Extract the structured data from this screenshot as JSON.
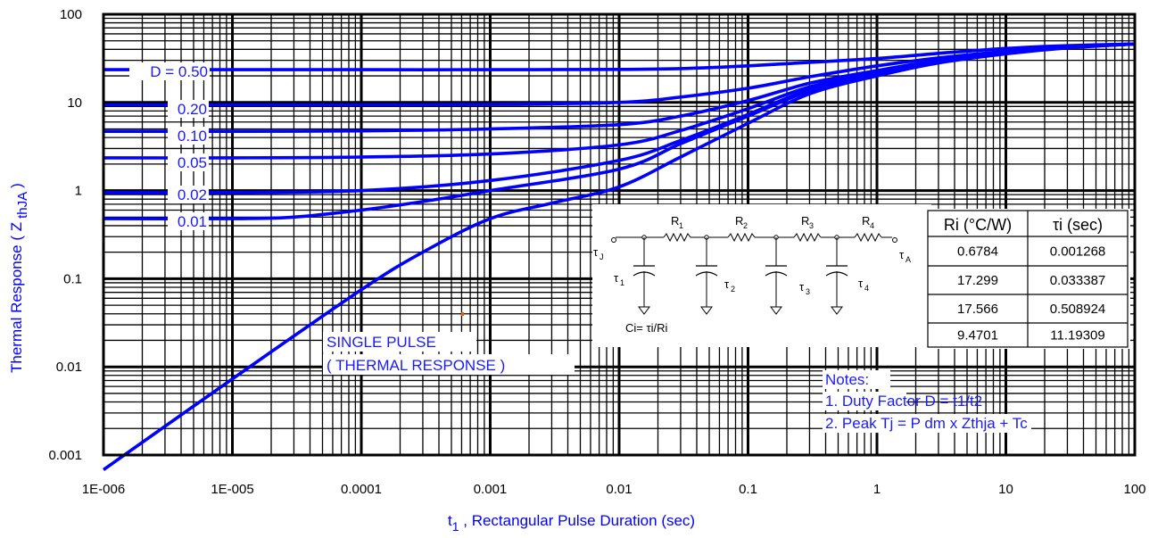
{
  "chart_data": {
    "type": "line",
    "xlabel": "t",
    "xlabel_sub": "1",
    "xlabel_rest": " , Rectangular Pulse Duration (sec)",
    "ylabel": "Thermal Response ( Z",
    "ylabel_sub": "thJA",
    "ylabel_end": ")",
    "x_scale": "log",
    "y_scale": "log",
    "xlim": [
      1e-06,
      100
    ],
    "ylim": [
      0.001,
      100
    ],
    "grid": true,
    "x_ticks": [
      "1E-006",
      "1E-005",
      "0.0001",
      "0.001",
      "0.01",
      "0.1",
      "1",
      "10",
      "100"
    ],
    "y_ticks": [
      "0.001",
      "0.01",
      "0.1",
      "1",
      "10",
      "100"
    ],
    "series": [
      {
        "name": "D = 0.50",
        "color": "#0000ff",
        "x": [
          1e-06,
          1e-05,
          0.0001,
          0.001,
          0.01,
          0.03,
          0.1,
          0.3,
          1,
          3,
          10,
          30,
          100
        ],
        "y": [
          23.5,
          23.5,
          23.5,
          23.5,
          23.7,
          24.2,
          26,
          28.5,
          31.5,
          36,
          41,
          44,
          46
        ]
      },
      {
        "name": "0.20",
        "color": "#0000ff",
        "x": [
          1e-06,
          1e-05,
          0.0001,
          0.001,
          0.01,
          0.03,
          0.1,
          0.3,
          1,
          3,
          10,
          30,
          100
        ],
        "y": [
          9.4,
          9.4,
          9.4,
          9.5,
          10,
          11.5,
          14.5,
          19.5,
          26,
          32,
          38,
          43,
          46
        ]
      },
      {
        "name": "0.10",
        "color": "#0000ff",
        "x": [
          1e-06,
          1e-05,
          0.0001,
          0.001,
          0.01,
          0.03,
          0.1,
          0.3,
          1,
          3,
          10,
          30,
          100
        ],
        "y": [
          4.7,
          4.7,
          4.75,
          5,
          5.6,
          7,
          10.5,
          16.5,
          23,
          30,
          37,
          42.5,
          46
        ]
      },
      {
        "name": "0.05",
        "color": "#0000ff",
        "x": [
          1e-06,
          1e-05,
          0.0001,
          0.001,
          0.01,
          0.03,
          0.1,
          0.3,
          1,
          3,
          10,
          30,
          100
        ],
        "y": [
          2.35,
          2.35,
          2.4,
          2.6,
          3.3,
          4.8,
          8.5,
          15,
          22,
          29.5,
          36.5,
          42,
          46
        ]
      },
      {
        "name": "0.02",
        "color": "#0000ff",
        "x": [
          1e-06,
          1e-05,
          0.0001,
          0.001,
          0.01,
          0.03,
          0.1,
          0.3,
          1,
          3,
          10,
          30,
          100
        ],
        "y": [
          0.95,
          0.95,
          1.0,
          1.3,
          2.2,
          3.7,
          7.3,
          14,
          21.5,
          29,
          36.5,
          42,
          46
        ]
      },
      {
        "name": "0.01",
        "color": "#0000ff",
        "x": [
          1e-06,
          1e-05,
          3e-05,
          0.0001,
          0.0003,
          0.001,
          0.01,
          0.03,
          0.1,
          0.3,
          1,
          3,
          10,
          30,
          100
        ],
        "y": [
          0.48,
          0.48,
          0.5,
          0.6,
          0.75,
          1.0,
          1.75,
          3.4,
          7,
          13.5,
          21,
          28.5,
          36,
          42,
          46
        ]
      },
      {
        "name": "SINGLE PULSE",
        "color": "#0000ff",
        "x": [
          1e-06,
          1e-05,
          0.0001,
          0.0003,
          0.001,
          0.003,
          0.01,
          0.03,
          0.1,
          0.3,
          1,
          3,
          10,
          30,
          100
        ],
        "y": [
          0.00068,
          0.0073,
          0.075,
          0.2,
          0.48,
          0.72,
          1.1,
          2.4,
          5.8,
          12.5,
          20,
          28,
          35.5,
          41.5,
          46
        ]
      }
    ],
    "series_labels": [
      "D = 0.50",
      "0.20",
      "0.10",
      "0.05",
      "0.02",
      "0.01"
    ],
    "single_pulse_label": [
      "SINGLE PULSE",
      "( THERMAL RESPONSE )"
    ],
    "notes": [
      "Notes:",
      "1. Duty Factor D = t1/t2",
      "2. Peak Tj = P dm x Zthja + Tc"
    ],
    "schematic": {
      "resistors": [
        "R1",
        "R2",
        "R3",
        "R4"
      ],
      "taus": [
        "τ1",
        "τ2",
        "τ3",
        "τ4"
      ],
      "left_node": "τJ",
      "right_node": "τA",
      "cap_formula": "Ci= τi/Ri"
    },
    "table": {
      "headers": [
        "Ri (°C/W)",
        "τi (sec)"
      ],
      "rows": [
        [
          "0.6784",
          "0.001268"
        ],
        [
          "17.299",
          "0.033387"
        ],
        [
          "17.566",
          "0.508924"
        ],
        [
          "9.4701",
          "11.19309"
        ]
      ]
    }
  }
}
